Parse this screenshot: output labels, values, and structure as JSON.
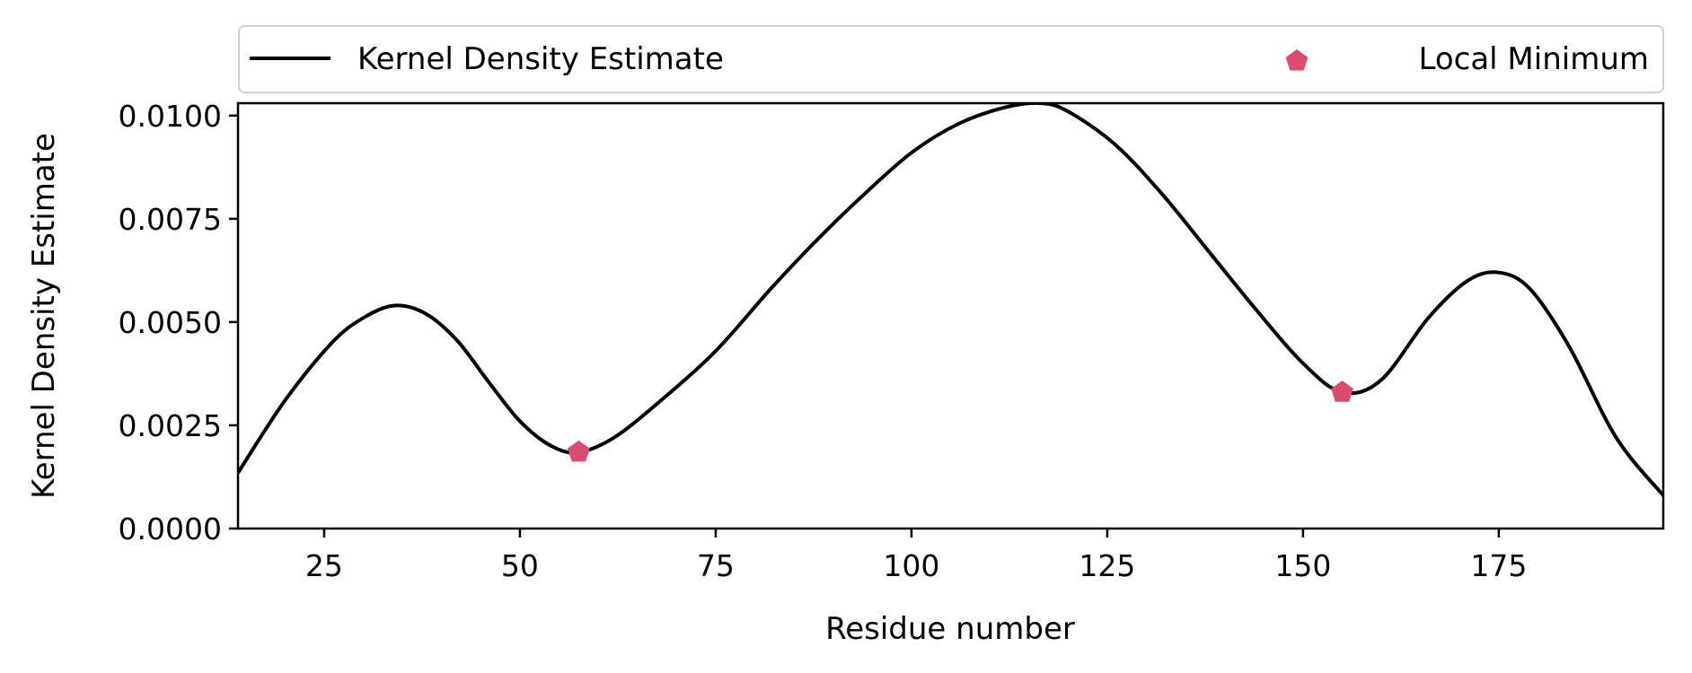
{
  "chart_data": {
    "type": "line",
    "xlabel": "Residue number",
    "ylabel": "Kernel Density Estimate",
    "xlim": [
      14,
      196
    ],
    "ylim": [
      0,
      0.0103
    ],
    "x_ticks": [
      25,
      50,
      75,
      100,
      125,
      150,
      175
    ],
    "x_tick_labels": [
      "25",
      "50",
      "75",
      "100",
      "125",
      "150",
      "175"
    ],
    "y_ticks": [
      0,
      0.0025,
      0.005,
      0.0075,
      0.01
    ],
    "y_tick_labels": [
      "0.0000",
      "0.0025",
      "0.0050",
      "0.0075",
      "0.0100"
    ],
    "grid": false,
    "legend_placement": "top-outside",
    "series": [
      {
        "name": "Kernel Density Estimate",
        "kind": "line",
        "color": "#000000",
        "x": [
          14,
          20,
          26,
          30,
          34,
          38,
          42,
          46,
          50,
          54,
          57.5,
          62,
          68,
          75,
          82,
          88,
          94,
          100,
          106,
          112,
          116.5,
          120,
          126,
          132,
          138,
          144,
          150,
          155,
          160,
          166,
          171,
          175,
          179,
          184,
          190,
          196
        ],
        "y": [
          0.00135,
          0.0031,
          0.0045,
          0.0051,
          0.0054,
          0.0052,
          0.00455,
          0.00355,
          0.0026,
          0.002,
          0.00185,
          0.0022,
          0.0031,
          0.0043,
          0.0058,
          0.007,
          0.0081,
          0.0091,
          0.0098,
          0.0102,
          0.0103,
          0.0101,
          0.0093,
          0.0081,
          0.0067,
          0.0053,
          0.004,
          0.0033,
          0.0036,
          0.0051,
          0.006,
          0.0062,
          0.0058,
          0.0044,
          0.0022,
          0.0008
        ]
      },
      {
        "name": "Local Minimum",
        "kind": "scatter",
        "marker": "pentagon",
        "color": "#dc4b6e",
        "x": [
          57.5,
          155
        ],
        "y": [
          0.00185,
          0.0033
        ]
      }
    ]
  }
}
